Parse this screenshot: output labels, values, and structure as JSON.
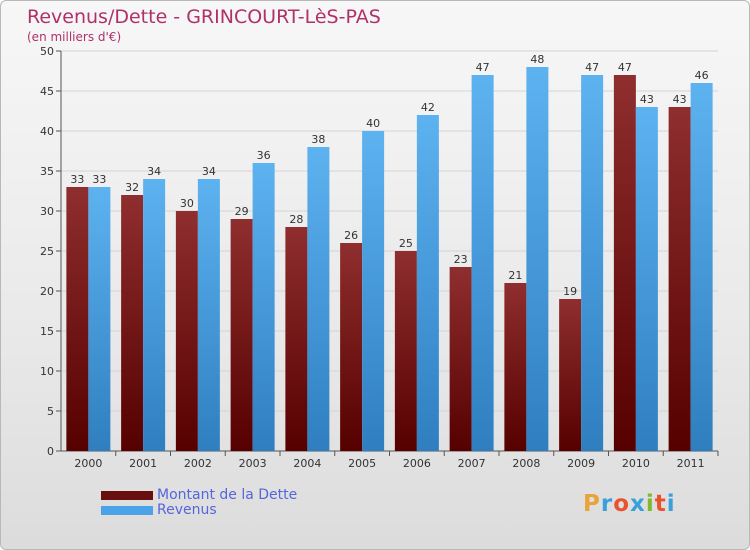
{
  "title": "Revenus/Dette - GRINCOURT-LèS-PAS",
  "subtitle": "(en milliers d'€)",
  "brand": {
    "letters": [
      "P",
      "r",
      "o",
      "x",
      "i",
      "t",
      "i"
    ],
    "colors": [
      "#e8a33b",
      "#3aa0dc",
      "#e8532e",
      "#3aa0dc",
      "#7fba2e",
      "#e8532e",
      "#3aa0dc"
    ]
  },
  "legend": [
    {
      "name": "Montant de la Dette",
      "color": "#7a1515"
    },
    {
      "name": "Revenus",
      "color": "#4aa3e8"
    }
  ],
  "chart_data": {
    "type": "bar",
    "categories": [
      "2000",
      "2001",
      "2002",
      "2003",
      "2004",
      "2005",
      "2006",
      "2007",
      "2008",
      "2009",
      "2010",
      "2011"
    ],
    "series": [
      {
        "name": "Montant de la Dette",
        "values": [
          33,
          32,
          30,
          29,
          28,
          26,
          25,
          23,
          21,
          19,
          47,
          43
        ],
        "color": "#7a1515"
      },
      {
        "name": "Revenus",
        "values": [
          33,
          34,
          34,
          36,
          38,
          40,
          42,
          47,
          48,
          47,
          43,
          46
        ],
        "color": "#4aa3e8"
      }
    ],
    "ylim": [
      0,
      50
    ],
    "yticks": [
      0,
      5,
      10,
      15,
      20,
      25,
      30,
      35,
      40,
      45,
      50
    ],
    "grid": true,
    "legend_position": "bottom-left"
  }
}
